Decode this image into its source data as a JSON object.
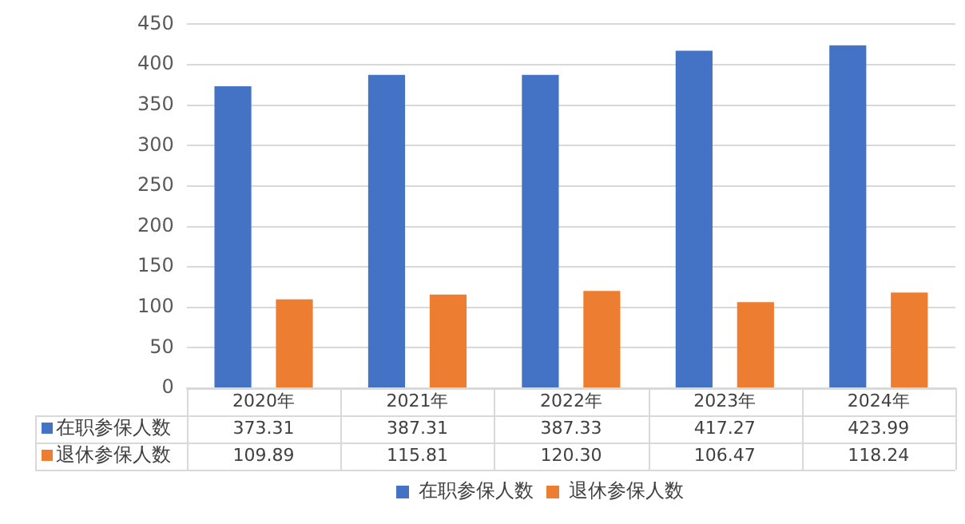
{
  "chart_data": {
    "type": "bar",
    "categories": [
      "2020年",
      "2021年",
      "2022年",
      "2023年",
      "2024年"
    ],
    "series": [
      {
        "name": "在职参保人数",
        "color": "#4472c4",
        "values": [
          373.31,
          387.31,
          387.33,
          417.27,
          423.99
        ],
        "value_labels": [
          "373.31",
          "387.31",
          "387.33",
          "417.27",
          "423.99"
        ]
      },
      {
        "name": "退休参保人数",
        "color": "#ed7d31",
        "values": [
          109.89,
          115.81,
          120.3,
          106.47,
          118.24
        ],
        "value_labels": [
          "109.89",
          "115.81",
          "120.30",
          "106.47",
          "118.24"
        ]
      }
    ],
    "ylim": [
      0,
      450
    ],
    "yticks": [
      0,
      50,
      100,
      150,
      200,
      250,
      300,
      350,
      400,
      450
    ],
    "grid": "y",
    "legend": "bottom"
  }
}
